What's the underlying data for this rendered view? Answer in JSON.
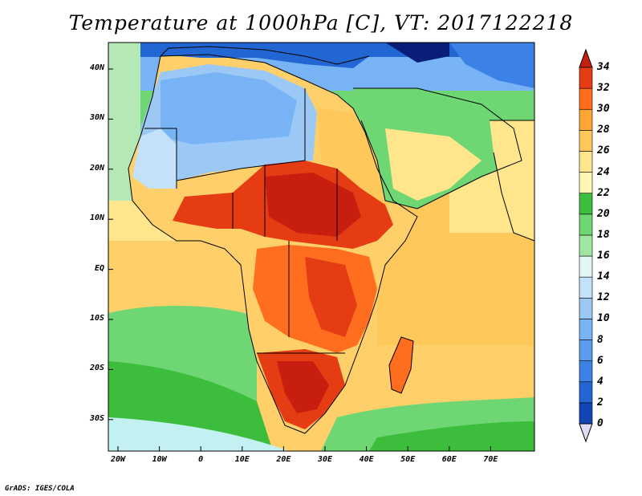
{
  "title": "Temperature at 1000hPa [C], VT: 2017122218",
  "credit": "GrADS: IGES/COLA",
  "lat_labels": [
    "40N",
    "30N",
    "20N",
    "10N",
    "EQ",
    "10S",
    "20S",
    "30S"
  ],
  "lon_labels": [
    "20W",
    "10W",
    "0",
    "10E",
    "20E",
    "30E",
    "40E",
    "50E",
    "60E",
    "70E"
  ],
  "colorbar": {
    "levels": [
      0,
      2,
      4,
      6,
      8,
      10,
      12,
      14,
      16,
      18,
      20,
      22,
      24,
      26,
      28,
      30,
      32,
      34
    ],
    "labels": [
      "0",
      "2",
      "4",
      "6",
      "8",
      "10",
      "12",
      "14",
      "16",
      "18",
      "20",
      "22",
      "24",
      "26",
      "28",
      "30",
      "32",
      "34"
    ],
    "colors": [
      "#0a1e78",
      "#1346b4",
      "#2166d2",
      "#3c82e6",
      "#5a9bef",
      "#78b4f5",
      "#9cc8f5",
      "#c3e1f8",
      "#e4f5f5",
      "#a0e6a0",
      "#6ed774",
      "#3cbe3c",
      "#fff5b4",
      "#ffe68c",
      "#ffc85a",
      "#ffa532",
      "#ff6e1e",
      "#e63c14",
      "#c81e0f"
    ]
  }
}
